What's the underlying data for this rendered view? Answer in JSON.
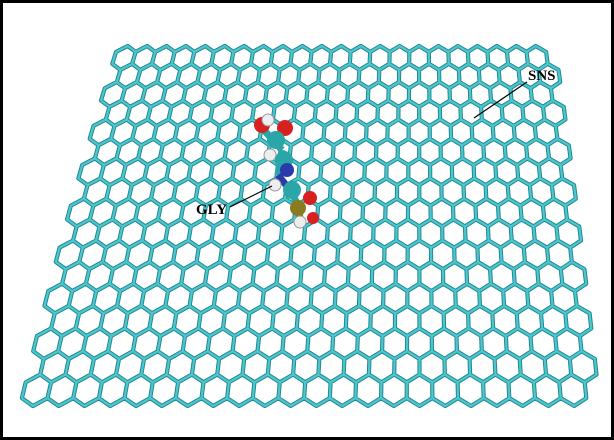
{
  "labels": {
    "sns": "SNS",
    "gly": "GLY"
  }
}
